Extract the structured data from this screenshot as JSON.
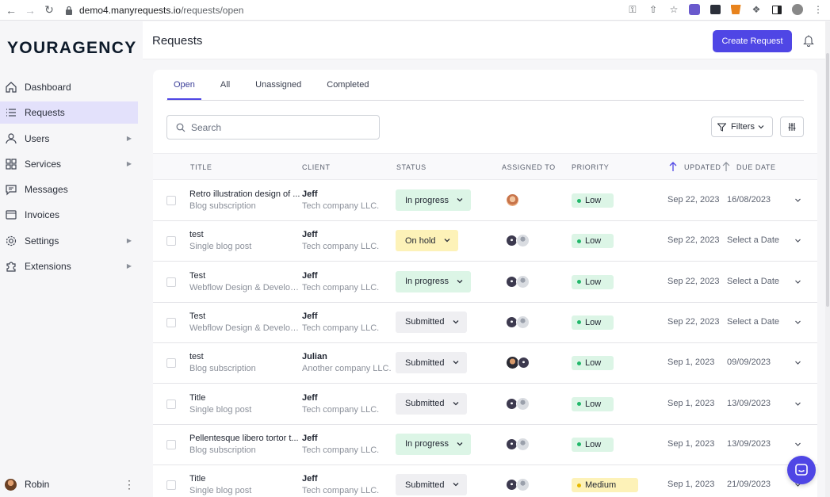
{
  "browser": {
    "url_host": "demo4.manyrequests.io",
    "url_path": "/requests/open"
  },
  "brand": {
    "logo": "YOURAGENCY"
  },
  "sidebar": {
    "items": [
      {
        "label": "Dashboard",
        "icon": "home-icon",
        "active": false,
        "has_submenu": false
      },
      {
        "label": "Requests",
        "icon": "list-icon",
        "active": true,
        "has_submenu": false
      },
      {
        "label": "Users",
        "icon": "users-icon",
        "active": false,
        "has_submenu": true
      },
      {
        "label": "Services",
        "icon": "grid-icon",
        "active": false,
        "has_submenu": true
      },
      {
        "label": "Messages",
        "icon": "chat-icon",
        "active": false,
        "has_submenu": false
      },
      {
        "label": "Invoices",
        "icon": "invoice-icon",
        "active": false,
        "has_submenu": false
      },
      {
        "label": "Settings",
        "icon": "gear-icon",
        "active": false,
        "has_submenu": true
      },
      {
        "label": "Extensions",
        "icon": "puzzle-icon",
        "active": false,
        "has_submenu": true
      }
    ],
    "user": {
      "name": "Robin"
    }
  },
  "header": {
    "title": "Requests",
    "create_label": "Create Request"
  },
  "tabs": [
    {
      "label": "Open",
      "active": true
    },
    {
      "label": "All",
      "active": false
    },
    {
      "label": "Unassigned",
      "active": false
    },
    {
      "label": "Completed",
      "active": false
    }
  ],
  "search": {
    "placeholder": "Search"
  },
  "filters": {
    "label": "Filters"
  },
  "table": {
    "columns": {
      "title": "TITLE",
      "client": "CLIENT",
      "status": "STATUS",
      "assigned": "ASSIGNED TO",
      "priority": "PRIORITY",
      "updated": "UPDATED",
      "due": "DUE DATE"
    },
    "rows": [
      {
        "title": "Retro illustration design of ...",
        "service": "Blog subscription",
        "client": "Jeff",
        "company": "Tech company LLC.",
        "status": "In progress",
        "status_kind": "progress",
        "assignees": [
          "woman"
        ],
        "priority": "Low",
        "priority_kind": "low",
        "updated": "Sep 22, 2023",
        "due": "16/08/2023"
      },
      {
        "title": "test",
        "service": "Single blog post",
        "client": "Jeff",
        "company": "Tech company LLC.",
        "status": "On hold",
        "status_kind": "hold",
        "assignees": [
          "dark",
          "grey"
        ],
        "priority": "Low",
        "priority_kind": "low",
        "updated": "Sep 22, 2023",
        "due": "Select a Date"
      },
      {
        "title": "Test",
        "service": "Webflow Design & Develop...",
        "client": "Jeff",
        "company": "Tech company LLC.",
        "status": "In progress",
        "status_kind": "progress",
        "assignees": [
          "dark",
          "grey"
        ],
        "priority": "Low",
        "priority_kind": "low",
        "updated": "Sep 22, 2023",
        "due": "Select a Date"
      },
      {
        "title": "Test",
        "service": "Webflow Design & Develop...",
        "client": "Jeff",
        "company": "Tech company LLC.",
        "status": "Submitted",
        "status_kind": "submitted",
        "assignees": [
          "dark",
          "grey"
        ],
        "priority": "Low",
        "priority_kind": "low",
        "updated": "Sep 22, 2023",
        "due": "Select a Date"
      },
      {
        "title": "test",
        "service": "Blog subscription",
        "client": "Julian",
        "company": "Another company LLC.",
        "status": "Submitted",
        "status_kind": "submitted",
        "assignees": [
          "man",
          "dark"
        ],
        "priority": "Low",
        "priority_kind": "low",
        "updated": "Sep 1, 2023",
        "due": "09/09/2023"
      },
      {
        "title": "Title",
        "service": "Single blog post",
        "client": "Jeff",
        "company": "Tech company LLC.",
        "status": "Submitted",
        "status_kind": "submitted",
        "assignees": [
          "dark",
          "grey"
        ],
        "priority": "Low",
        "priority_kind": "low",
        "updated": "Sep 1, 2023",
        "due": "13/09/2023"
      },
      {
        "title": "Pellentesque libero tortor t...",
        "service": "Blog subscription",
        "client": "Jeff",
        "company": "Tech company LLC.",
        "status": "In progress",
        "status_kind": "progress",
        "assignees": [
          "dark",
          "grey"
        ],
        "priority": "Low",
        "priority_kind": "low",
        "updated": "Sep 1, 2023",
        "due": "13/09/2023"
      },
      {
        "title": "Title",
        "service": "Single blog post",
        "client": "Jeff",
        "company": "Tech company LLC.",
        "status": "Submitted",
        "status_kind": "submitted",
        "assignees": [
          "dark",
          "grey"
        ],
        "priority": "Medium",
        "priority_kind": "med",
        "updated": "Sep 1, 2023",
        "due": "21/09/2023"
      }
    ]
  },
  "colors": {
    "accent": "#4f46e5",
    "active_nav": "#e3e1fb",
    "progress_bg": "#dcf5e6",
    "hold_bg": "#fdf2b8",
    "submitted_bg": "#efeff2"
  }
}
